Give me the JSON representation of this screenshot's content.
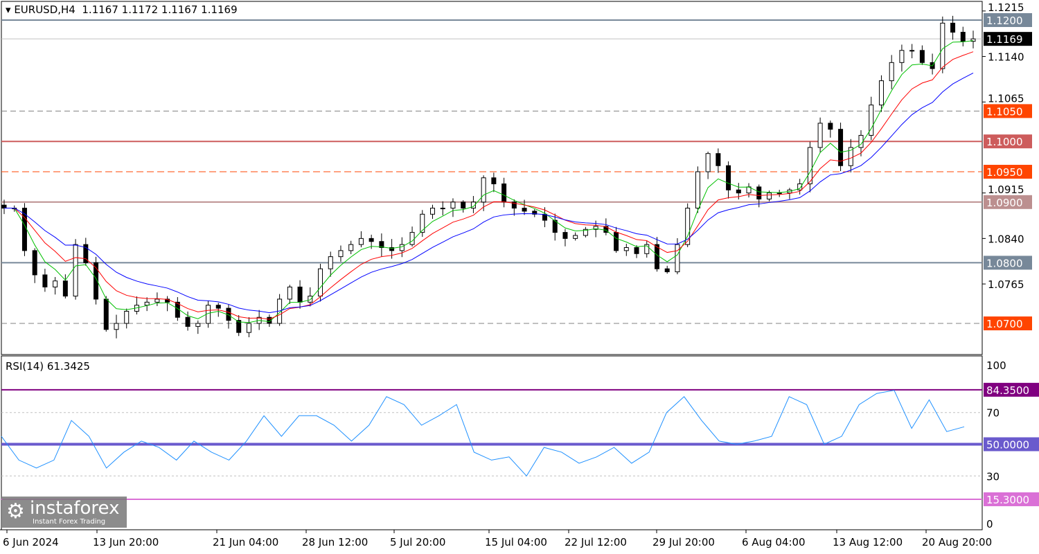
{
  "header": {
    "symbol": "EURUSD,H4",
    "ohlc": "1.1167 1.1172 1.1167 1.1169"
  },
  "rsi_header": "RSI(14) 61.3425",
  "logo": {
    "name": "instaforex",
    "tagline": "Instant Forex Trading"
  },
  "chart_data": {
    "type": "candlestick",
    "price_range": [
      1.064,
      1.124
    ],
    "price_ticks": [
      "1.1215",
      "1.1140",
      "1.1065",
      "1.0915",
      "1.0840",
      "1.0765"
    ],
    "time_labels": [
      "6 Jun 2024",
      "13 Jun 20:00",
      "21 Jun 04:00",
      "28 Jun 12:00",
      "5 Jul 20:00",
      "15 Jul 04:00",
      "22 Jul 12:00",
      "29 Jul 20:00",
      "6 Aug 04:00",
      "13 Aug 12:00",
      "20 Aug 20:00"
    ],
    "closes": [
      1.089,
      1.089,
      1.082,
      1.078,
      1.076,
      1.077,
      1.0745,
      1.083,
      1.08,
      1.074,
      1.069,
      1.07,
      1.072,
      1.073,
      1.0735,
      1.074,
      1.0735,
      1.071,
      1.0695,
      1.07,
      1.073,
      1.0725,
      1.0705,
      1.0685,
      1.07,
      1.071,
      1.07,
      1.074,
      1.076,
      1.0735,
      1.0745,
      1.079,
      1.081,
      1.082,
      1.083,
      1.084,
      1.0835,
      1.0825,
      1.082,
      1.083,
      1.085,
      1.088,
      1.089,
      1.089,
      1.09,
      1.089,
      1.09,
      1.094,
      1.093,
      1.09,
      1.089,
      1.0885,
      1.088,
      1.087,
      1.085,
      1.084,
      1.0845,
      1.0855,
      1.086,
      1.085,
      1.082,
      1.0825,
      1.0815,
      1.083,
      1.079,
      1.0785,
      1.083,
      1.089,
      1.095,
      1.098,
      1.096,
      1.092,
      1.0915,
      1.0925,
      1.0905,
      1.0915,
      1.0915,
      1.092,
      1.093,
      1.099,
      1.103,
      1.102,
      1.096,
      1.099,
      1.101,
      1.106,
      1.11,
      1.113,
      1.115,
      1.115,
      1.113,
      1.112,
      1.1195,
      1.118,
      1.1165,
      1.1169
    ],
    "levels": [
      {
        "price": 1.12,
        "label": "1.1200",
        "color": "#778899",
        "style": "solid"
      },
      {
        "price": 1.1169,
        "label": "1.1169",
        "color": "#000000",
        "style": "current"
      },
      {
        "price": 1.105,
        "label": "1.1050",
        "color": "#FF4500",
        "style": "dashed-gray"
      },
      {
        "price": 1.1,
        "label": "1.1000",
        "color": "#CD5C5C",
        "style": "solid"
      },
      {
        "price": 1.095,
        "label": "1.0950",
        "color": "#FF4500",
        "style": "dashed"
      },
      {
        "price": 1.09,
        "label": "1.0900",
        "color": "#BC8F8F",
        "style": "solid"
      },
      {
        "price": 1.08,
        "label": "1.0800",
        "color": "#778899",
        "style": "solid"
      },
      {
        "price": 1.07,
        "label": "1.0700",
        "color": "#FF4500",
        "style": "dashed-gray"
      }
    ],
    "moving_averages": [
      {
        "color": "#00C000"
      },
      {
        "color": "#FF0000"
      },
      {
        "color": "#0000FF"
      }
    ],
    "rsi": {
      "range": [
        0,
        100
      ],
      "ticks": [
        "100",
        "70",
        "30",
        "0"
      ],
      "color": "#1E90FF",
      "values": [
        55,
        40,
        35,
        40,
        65,
        55,
        35,
        45,
        52,
        48,
        40,
        52,
        45,
        40,
        52,
        68,
        55,
        68,
        68,
        62,
        52,
        62,
        80,
        75,
        62,
        68,
        75,
        45,
        40,
        42,
        30,
        48,
        45,
        38,
        42,
        48,
        38,
        45,
        70,
        80,
        65,
        52,
        50,
        52,
        55,
        80,
        75,
        50,
        55,
        75,
        82,
        84,
        60,
        78,
        58,
        61
      ],
      "levels": [
        {
          "value": 84.35,
          "label": "84.3500",
          "color": "#800080"
        },
        {
          "value": 50,
          "label": "50.0000",
          "color": "#6A5ACD"
        },
        {
          "value": 15.3,
          "label": "15.3000",
          "color": "#DA70D6"
        }
      ]
    }
  }
}
